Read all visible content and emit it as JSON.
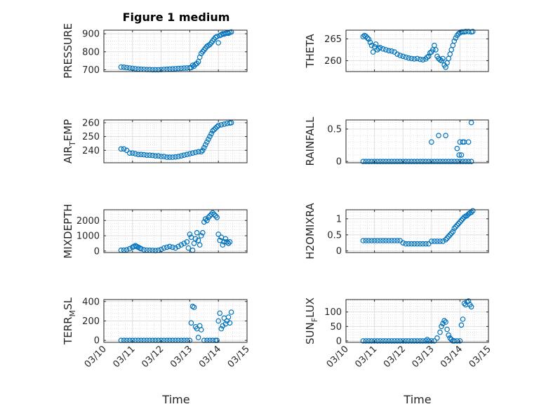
{
  "figure": {
    "title": "Figure 1 medium",
    "xlabel": "Time",
    "x_tick_labels": [
      "03/10",
      "03/11",
      "03/12",
      "03/13",
      "03/14",
      "03/15"
    ],
    "marker_color": "#0072BD"
  },
  "chart_data": [
    {
      "type": "scatter",
      "ylabel": "PRESSURE",
      "ylim": [
        690,
        920
      ],
      "yticks": [
        700,
        800,
        900
      ],
      "xlim": [
        10,
        15
      ],
      "grid": true,
      "x": [
        10.6,
        10.7,
        10.8,
        10.9,
        11.0,
        11.1,
        11.2,
        11.3,
        11.4,
        11.5,
        11.6,
        11.7,
        11.8,
        11.9,
        12.0,
        12.1,
        12.2,
        12.3,
        12.4,
        12.5,
        12.6,
        12.7,
        12.8,
        12.9,
        13.0,
        13.05,
        13.1,
        13.15,
        13.2,
        13.25,
        13.3,
        13.35,
        13.4,
        13.45,
        13.5,
        13.55,
        13.6,
        13.65,
        13.7,
        13.75,
        13.8,
        13.85,
        13.9,
        13.95,
        14.0,
        14.05,
        14.1,
        14.15,
        14.2,
        14.25,
        14.3,
        14.35,
        14.4,
        14.45
      ],
      "y": [
        715,
        714,
        712,
        710,
        708,
        706,
        704,
        703,
        702,
        701,
        701,
        700,
        700,
        700,
        701,
        702,
        703,
        704,
        705,
        706,
        707,
        708,
        709,
        710,
        711,
        712,
        725,
        720,
        730,
        735,
        745,
        770,
        790,
        800,
        810,
        820,
        830,
        835,
        840,
        850,
        860,
        870,
        880,
        885,
        850,
        890,
        895,
        900,
        898,
        902,
        905,
        903,
        908,
        910
      ]
    },
    {
      "type": "scatter",
      "ylabel": "THETA",
      "ylim": [
        257.5,
        267
      ],
      "yticks": [
        260,
        265
      ],
      "xlim": [
        10,
        15
      ],
      "grid": true,
      "x": [
        10.6,
        10.65,
        10.7,
        10.75,
        10.8,
        10.85,
        10.9,
        10.95,
        11.0,
        11.05,
        11.1,
        11.15,
        11.2,
        11.3,
        11.4,
        11.5,
        11.6,
        11.7,
        11.8,
        11.9,
        12.0,
        12.1,
        12.2,
        12.3,
        12.4,
        12.5,
        12.6,
        12.7,
        12.8,
        12.85,
        12.9,
        12.95,
        13.0,
        13.05,
        13.1,
        13.15,
        13.2,
        13.25,
        13.3,
        13.35,
        13.4,
        13.45,
        13.5,
        13.55,
        13.6,
        13.65,
        13.7,
        13.75,
        13.8,
        13.85,
        13.9,
        13.95,
        14.0,
        14.05,
        14.1,
        14.15,
        14.2,
        14.3,
        14.4,
        14.45
      ],
      "y": [
        265.5,
        265.8,
        265.6,
        265.2,
        264.9,
        264.2,
        263.5,
        262.0,
        263.2,
        263.8,
        262.5,
        262.8,
        263.0,
        262.7,
        262.5,
        262.3,
        262.2,
        262.0,
        261.5,
        261.2,
        261.0,
        260.8,
        260.6,
        260.5,
        260.4,
        260.5,
        260.3,
        260.2,
        260.4,
        260.8,
        261.0,
        261.8,
        262.0,
        262.5,
        263.5,
        262.5,
        261.0,
        260.5,
        260.2,
        260.0,
        260.5,
        259.0,
        258.5,
        259.5,
        260.5,
        261.5,
        262.5,
        263.5,
        264.5,
        265.2,
        265.8,
        266.2,
        266.4,
        266.6,
        266.6,
        266.6,
        266.7,
        266.7,
        266.6,
        266.7
      ]
    },
    {
      "type": "scatter",
      "ylabel_parts": [
        "AIR",
        "T",
        "EMP"
      ],
      "ylim": [
        231,
        262
      ],
      "yticks": [
        240,
        250,
        260
      ],
      "xlim": [
        10,
        15
      ],
      "grid": true,
      "x": [
        10.6,
        10.7,
        10.8,
        10.9,
        11.0,
        11.1,
        11.2,
        11.3,
        11.4,
        11.5,
        11.6,
        11.7,
        11.8,
        11.9,
        12.0,
        12.1,
        12.2,
        12.3,
        12.4,
        12.5,
        12.6,
        12.7,
        12.8,
        12.9,
        13.0,
        13.1,
        13.2,
        13.3,
        13.4,
        13.45,
        13.5,
        13.55,
        13.6,
        13.65,
        13.7,
        13.75,
        13.8,
        13.85,
        13.9,
        13.95,
        14.0,
        14.1,
        14.2,
        14.3,
        14.4,
        14.45
      ],
      "y": [
        241,
        241,
        240,
        238,
        238,
        237.5,
        237,
        237,
        236.8,
        236.5,
        236.5,
        236.3,
        236,
        236,
        235.5,
        235.5,
        235,
        235,
        235,
        235.2,
        235.5,
        236,
        236.5,
        237,
        237.5,
        238,
        238.5,
        239,
        239,
        240,
        242,
        244,
        246,
        248,
        250,
        252,
        254,
        255,
        256,
        257,
        258,
        258.5,
        259,
        259.5,
        259.8,
        260
      ]
    },
    {
      "type": "scatter",
      "ylabel": "RAINFALL",
      "ylim": [
        -0.02,
        0.64
      ],
      "yticks": [
        0,
        0.5
      ],
      "xlim": [
        10,
        15
      ],
      "grid": true,
      "x": [
        10.6,
        10.7,
        10.8,
        10.9,
        11.0,
        11.1,
        11.2,
        11.3,
        11.4,
        11.5,
        11.6,
        11.7,
        11.8,
        11.9,
        12.0,
        12.1,
        12.2,
        12.3,
        12.4,
        12.5,
        12.6,
        12.7,
        12.8,
        12.9,
        13.0,
        13.1,
        13.2,
        13.3,
        13.4,
        13.5,
        13.6,
        13.7,
        13.8,
        13.9,
        14.0,
        14.1,
        14.2,
        14.3,
        14.4,
        13.0,
        13.25,
        13.5,
        13.9,
        13.97,
        14.0,
        14.05,
        14.1,
        14.15,
        14.3,
        14.4
      ],
      "y": [
        0,
        0,
        0,
        0,
        0,
        0,
        0,
        0,
        0,
        0,
        0,
        0,
        0,
        0,
        0,
        0,
        0,
        0,
        0,
        0,
        0,
        0,
        0,
        0,
        0,
        0,
        0,
        0,
        0,
        0,
        0,
        0,
        0,
        0,
        0,
        0,
        0,
        0,
        0,
        0.3,
        0.4,
        0.4,
        0.2,
        0.1,
        0.3,
        0.1,
        0.3,
        0.3,
        0.3,
        0.6
      ]
    },
    {
      "type": "scatter",
      "ylabel": "MIXDEPTH",
      "ylim": [
        -100,
        2700
      ],
      "yticks": [
        0,
        1000,
        2000
      ],
      "xlim": [
        10,
        15
      ],
      "grid": true,
      "x": [
        10.6,
        10.7,
        10.8,
        10.9,
        11.0,
        11.05,
        11.1,
        11.15,
        11.2,
        11.25,
        11.3,
        11.4,
        11.5,
        11.6,
        11.7,
        11.8,
        11.9,
        12.0,
        12.1,
        12.2,
        12.3,
        12.4,
        12.5,
        12.6,
        12.7,
        12.8,
        12.9,
        12.95,
        13.0,
        13.05,
        13.1,
        13.15,
        13.2,
        13.25,
        13.3,
        13.35,
        13.4,
        13.45,
        13.5,
        13.55,
        13.6,
        13.65,
        13.7,
        13.75,
        13.8,
        13.85,
        13.9,
        13.95,
        14.0,
        14.05,
        14.1,
        14.15,
        14.2,
        14.25,
        14.3,
        14.35,
        14.4
      ],
      "y": [
        50,
        60,
        80,
        150,
        250,
        300,
        350,
        300,
        250,
        200,
        150,
        80,
        60,
        50,
        40,
        30,
        50,
        100,
        200,
        250,
        300,
        250,
        200,
        300,
        400,
        500,
        600,
        200,
        1100,
        900,
        50,
        500,
        800,
        1200,
        700,
        400,
        1000,
        1200,
        1900,
        2100,
        2000,
        2200,
        2300,
        2400,
        2500,
        2400,
        2300,
        2200,
        1100,
        700,
        900,
        400,
        600,
        800,
        600,
        500,
        600
      ]
    },
    {
      "type": "scatter",
      "ylabel": "H2OMIXRA",
      "ylim": [
        -0.05,
        1.28
      ],
      "yticks": [
        0,
        0.5,
        1
      ],
      "xlim": [
        10,
        15
      ],
      "grid": true,
      "x": [
        10.6,
        10.7,
        10.8,
        10.9,
        11.0,
        11.1,
        11.2,
        11.3,
        11.4,
        11.5,
        11.6,
        11.7,
        11.8,
        11.9,
        12.0,
        12.1,
        12.2,
        12.3,
        12.4,
        12.5,
        12.6,
        12.7,
        12.8,
        12.9,
        13.0,
        13.1,
        13.2,
        13.3,
        13.4,
        13.5,
        13.55,
        13.6,
        13.65,
        13.7,
        13.75,
        13.8,
        13.85,
        13.9,
        13.95,
        14.0,
        14.05,
        14.1,
        14.15,
        14.2,
        14.25,
        14.3,
        14.35,
        14.4,
        14.45
      ],
      "y": [
        0.32,
        0.32,
        0.32,
        0.32,
        0.32,
        0.32,
        0.32,
        0.32,
        0.32,
        0.32,
        0.32,
        0.32,
        0.32,
        0.32,
        0.25,
        0.22,
        0.22,
        0.22,
        0.22,
        0.22,
        0.22,
        0.22,
        0.22,
        0.22,
        0.3,
        0.3,
        0.3,
        0.3,
        0.3,
        0.35,
        0.4,
        0.45,
        0.5,
        0.55,
        0.6,
        0.7,
        0.75,
        0.8,
        0.85,
        0.9,
        0.95,
        1.0,
        1.05,
        1.08,
        1.1,
        1.15,
        1.18,
        1.2,
        1.25
      ]
    },
    {
      "type": "scatter",
      "ylabel_parts": [
        "TERR",
        "M",
        "SL"
      ],
      "ylim": [
        -20,
        420
      ],
      "yticks": [
        0,
        200,
        400
      ],
      "xlim": [
        10,
        15
      ],
      "grid": true,
      "x": [
        10.6,
        10.7,
        10.8,
        10.9,
        11.0,
        11.1,
        11.2,
        11.3,
        11.4,
        11.5,
        11.6,
        11.7,
        11.8,
        11.9,
        12.0,
        12.1,
        12.2,
        12.3,
        12.4,
        12.5,
        12.6,
        12.7,
        12.8,
        12.9,
        13.0,
        13.05,
        13.1,
        13.15,
        13.2,
        13.25,
        13.3,
        13.35,
        13.4,
        13.5,
        13.6,
        13.7,
        13.8,
        13.9,
        13.95,
        14.0,
        14.05,
        14.1,
        14.15,
        14.2,
        14.25,
        14.3,
        14.35,
        14.4,
        14.45
      ],
      "y": [
        0,
        0,
        0,
        0,
        0,
        0,
        0,
        0,
        0,
        0,
        0,
        0,
        0,
        0,
        0,
        0,
        0,
        0,
        0,
        0,
        0,
        0,
        0,
        0,
        0,
        180,
        350,
        340,
        140,
        120,
        30,
        150,
        110,
        0,
        0,
        0,
        0,
        0,
        0,
        200,
        280,
        120,
        150,
        230,
        170,
        200,
        240,
        180,
        290
      ]
    },
    {
      "type": "scatter",
      "ylabel_parts": [
        "SUN",
        "F",
        "LUX"
      ],
      "ylim": [
        -5,
        143
      ],
      "yticks": [
        0,
        50,
        100
      ],
      "xlim": [
        10,
        15
      ],
      "grid": true,
      "x": [
        10.6,
        10.7,
        10.8,
        10.9,
        11.0,
        11.1,
        11.2,
        11.3,
        11.4,
        11.5,
        11.6,
        11.7,
        11.8,
        11.9,
        12.0,
        12.1,
        12.2,
        12.3,
        12.4,
        12.5,
        12.6,
        12.7,
        12.8,
        12.85,
        12.9,
        13.0,
        13.1,
        13.2,
        13.3,
        13.35,
        13.4,
        13.45,
        13.5,
        13.55,
        13.6,
        13.65,
        13.7,
        13.75,
        13.8,
        13.9,
        14.0,
        14.05,
        14.1,
        14.15,
        14.2,
        14.25,
        14.3,
        14.35,
        14.4
      ],
      "y": [
        0,
        0,
        0,
        0,
        0,
        0,
        0,
        0,
        0,
        0,
        0,
        0,
        0,
        0,
        0,
        0,
        0,
        0,
        0,
        0,
        0,
        0,
        0,
        5,
        0,
        0,
        0,
        10,
        30,
        50,
        60,
        70,
        65,
        40,
        20,
        10,
        5,
        0,
        0,
        0,
        0,
        55,
        75,
        130,
        125,
        135,
        138,
        125,
        118
      ]
    }
  ]
}
